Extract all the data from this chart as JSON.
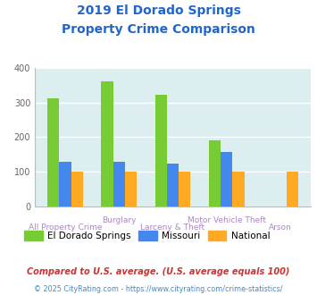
{
  "title_line1": "2019 El Dorado Springs",
  "title_line2": "Property Crime Comparison",
  "title_color": "#2266cc",
  "categories": [
    "All Property Crime",
    "Burglary",
    "Larceny & Theft",
    "Motor Vehicle Theft",
    "Arson"
  ],
  "el_dorado": [
    313,
    362,
    322,
    190,
    0
  ],
  "missouri": [
    128,
    130,
    123,
    157,
    0
  ],
  "national": [
    100,
    100,
    100,
    100,
    100
  ],
  "color_el_dorado": "#77cc33",
  "color_missouri": "#4488ee",
  "color_national": "#ffaa22",
  "ylim": [
    0,
    400
  ],
  "yticks": [
    0,
    100,
    200,
    300,
    400
  ],
  "bar_width": 0.22,
  "plot_bg": "#ddeef0",
  "grid_color": "#ffffff",
  "xlabel_color": "#aa88bb",
  "legend_labels": [
    "El Dorado Springs",
    "Missouri",
    "National"
  ],
  "footnote1": "Compared to U.S. average. (U.S. average equals 100)",
  "footnote2": "© 2025 CityRating.com - https://www.cityrating.com/crime-statistics/",
  "footnote1_color": "#cc3333",
  "footnote2_color": "#4488cc"
}
